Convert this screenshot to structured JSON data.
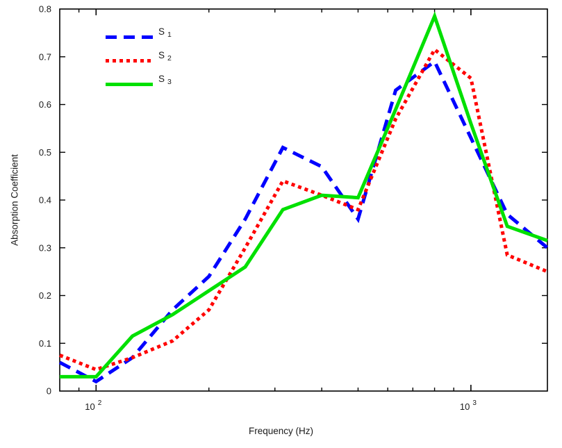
{
  "chart_data": {
    "type": "line",
    "title": "",
    "xlabel": "Frequency (Hz)",
    "ylabel": "Absorption Coefficient",
    "x_scale": "log",
    "grid": false,
    "legend_position": "top-left-inside",
    "xlim": [
      80,
      1600
    ],
    "ylim": [
      0,
      0.8
    ],
    "x": [
      80,
      100,
      125,
      160,
      200,
      250,
      315,
      400,
      500,
      630,
      800,
      1000,
      1250,
      1600
    ],
    "series": [
      {
        "name": "S_1",
        "label": "S",
        "sub": "1",
        "color": "#0000ff",
        "style": "dashed",
        "values": [
          0.06,
          0.02,
          0.07,
          0.17,
          0.24,
          0.36,
          0.51,
          0.47,
          0.36,
          0.63,
          0.69,
          0.53,
          0.37,
          0.3
        ]
      },
      {
        "name": "S_2",
        "label": "S",
        "sub": "2",
        "color": "#ff0000",
        "style": "dotted",
        "values": [
          0.075,
          0.045,
          0.07,
          0.105,
          0.17,
          0.3,
          0.44,
          0.41,
          0.38,
          0.57,
          0.715,
          0.655,
          0.285,
          0.25
        ]
      },
      {
        "name": "S_3",
        "label": "S",
        "sub": "3",
        "color": "#00e000",
        "style": "solid",
        "values": [
          0.03,
          0.03,
          0.115,
          0.16,
          0.21,
          0.26,
          0.38,
          0.41,
          0.405,
          0.59,
          0.785,
          0.56,
          0.345,
          0.315
        ]
      }
    ],
    "y_ticks": [
      0,
      0.1,
      0.2,
      0.3,
      0.4,
      0.5,
      0.6,
      0.7,
      0.8
    ],
    "y_tick_labels": [
      "0",
      "0.1",
      "0.2",
      "0.3",
      "0.4",
      "0.5",
      "0.6",
      "0.7",
      "0.8"
    ],
    "x_major_ticks": [
      {
        "value": 100,
        "label_base": "10",
        "label_exp": "2"
      },
      {
        "value": 1000,
        "label_base": "10",
        "label_exp": "3"
      }
    ],
    "x_minor_ticks": [
      90,
      200,
      300,
      400,
      500,
      600,
      700,
      800,
      900
    ],
    "axis_color": "#000000",
    "text_color": "#1a1a1a"
  }
}
